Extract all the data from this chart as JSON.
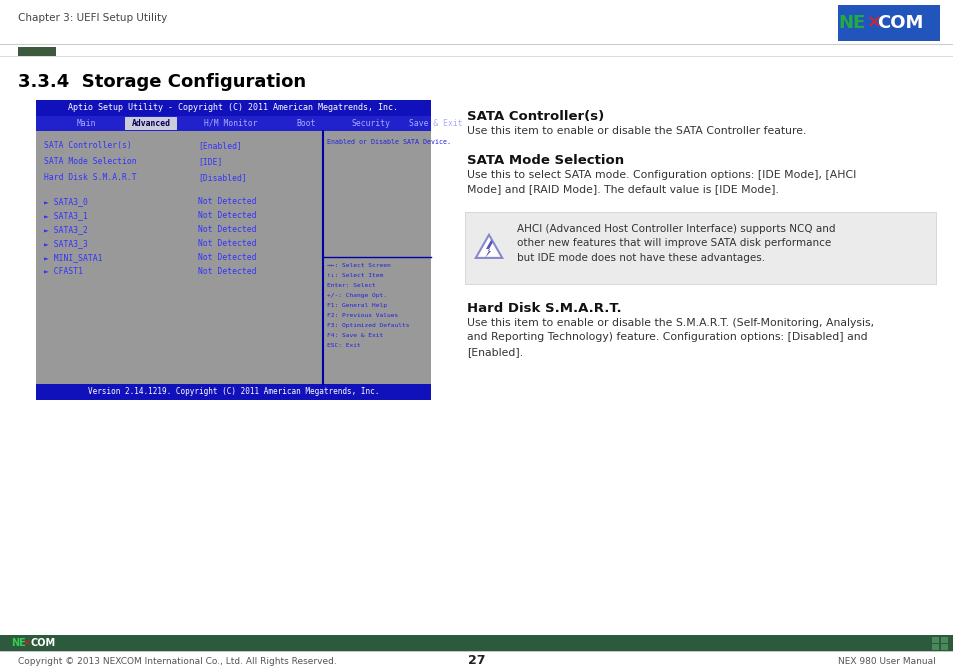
{
  "page_bg": "#ffffff",
  "header_text": "Chapter 3: UEFI Setup Utility",
  "title": "3.3.4  Storage Configuration",
  "bios_title": "Aptio Setup Utility - Copyright (C) 2011 American Megatrends, Inc.",
  "nav_items": [
    "Main",
    "Advanced",
    "H/M Monitor",
    "Boot",
    "Security",
    "Save & Exit"
  ],
  "nav_active": 1,
  "bios_items": [
    [
      "SATA Controller(s)",
      "[Enabled]"
    ],
    [
      "SATA Mode Selection",
      "[IDE]"
    ],
    [
      "Hard Disk S.M.A.R.T",
      "[Disabled]"
    ]
  ],
  "bios_submenu_items": [
    [
      "► SATA3_0",
      "Not Detected"
    ],
    [
      "► SATA3_1",
      "Not Detected"
    ],
    [
      "► SATA3_2",
      "Not Detected"
    ],
    [
      "► SATA3_3",
      "Not Detected"
    ],
    [
      "► MINI_SATA1",
      "Not Detected"
    ],
    [
      "► CFAST1",
      "Not Detected"
    ]
  ],
  "bios_help_text": "Enabled or Disable SATA Device.",
  "bios_keys": [
    "→←: Select Screen",
    "↑↓: Select Item",
    "Enter: Select",
    "+/-: Change Opt.",
    "F1: General Help",
    "F2: Previous Values",
    "F3: Optimized Defaults",
    "F4: Save & Exit",
    "ESC: Exit"
  ],
  "bios_footer": "Version 2.14.1219. Copyright (C) 2011 American Megatrends, Inc.",
  "section1_title": "SATA Controller(s)",
  "section1_text": "Use this item to enable or disable the SATA Controller feature.",
  "section2_title": "SATA Mode Selection",
  "section2_text": "Use this to select SATA mode. Configuration options: [IDE Mode], [AHCI\nMode] and [RAID Mode]. The default value is [IDE Mode].",
  "note_text": "AHCI (Advanced Host Controller Interface) supports NCQ and\nother new features that will improve SATA disk performance\nbut IDE mode does not have these advantages.",
  "section3_title": "Hard Disk S.M.A.R.T.",
  "section3_text": "Use this item to enable or disable the S.M.A.R.T. (Self-Monitoring, Analysis,\nand Reporting Technology) feature. Configuration options: [Disabled] and\n[Enabled].",
  "footer_copy": "Copyright © 2013 NEXCOM International Co., Ltd. All Rights Reserved.",
  "footer_page": "27",
  "footer_manual": "NEX 980 User Manual"
}
